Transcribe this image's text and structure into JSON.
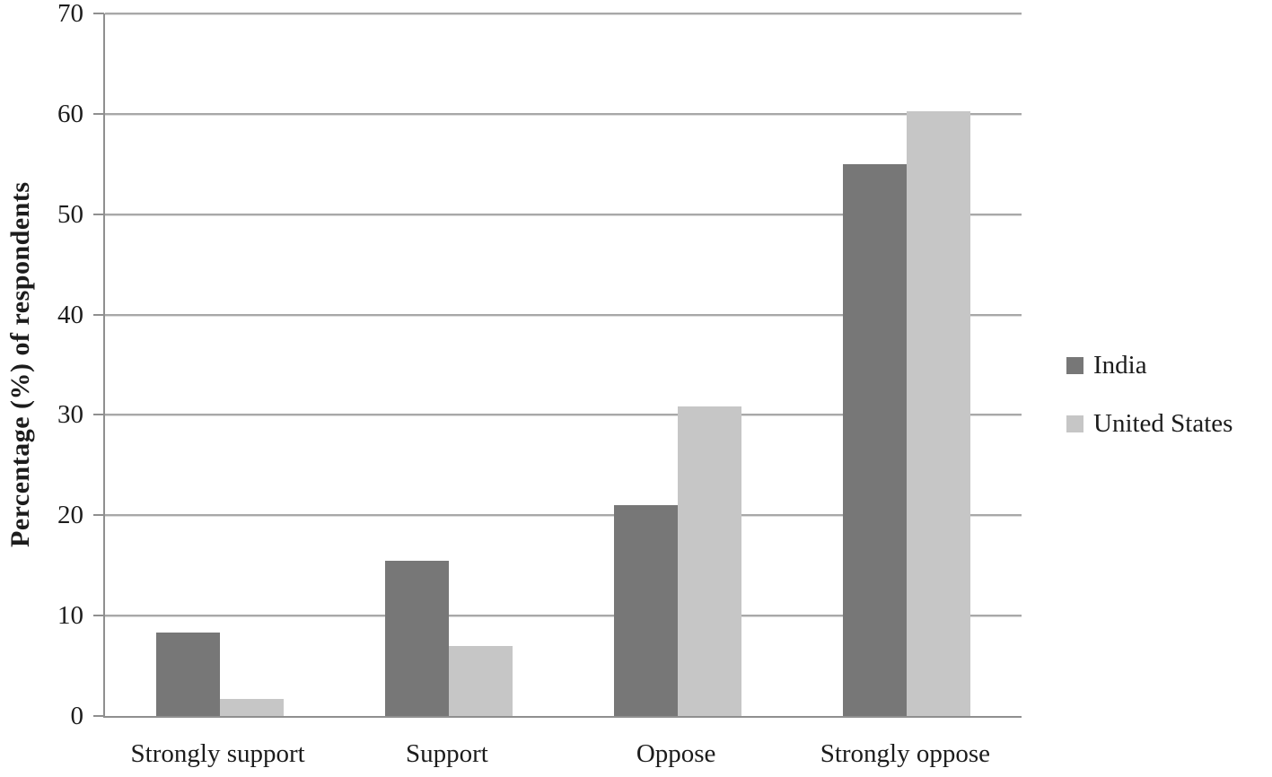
{
  "chart_data": {
    "type": "bar",
    "title": "",
    "categories": [
      "Strongly support",
      "Support",
      "Oppose",
      "Strongly oppose"
    ],
    "series": [
      {
        "name": "India",
        "color": "#777777",
        "values": [
          8.3,
          15.5,
          21.0,
          55.0
        ]
      },
      {
        "name": "United States",
        "color": "#c6c6c6",
        "values": [
          1.7,
          7.0,
          30.8,
          60.3
        ]
      }
    ],
    "xlabel": "",
    "ylabel": "Percentage (%) of respondents",
    "ylim": [
      0,
      70
    ],
    "yticks": [
      0,
      10,
      20,
      30,
      40,
      50,
      60,
      70
    ],
    "grid": true,
    "legend_position": "right"
  },
  "colors": {
    "gridline": "#a8a8a8",
    "axis": "#8f8f8f",
    "text": "#1c1c1c",
    "background": "#ffffff"
  }
}
